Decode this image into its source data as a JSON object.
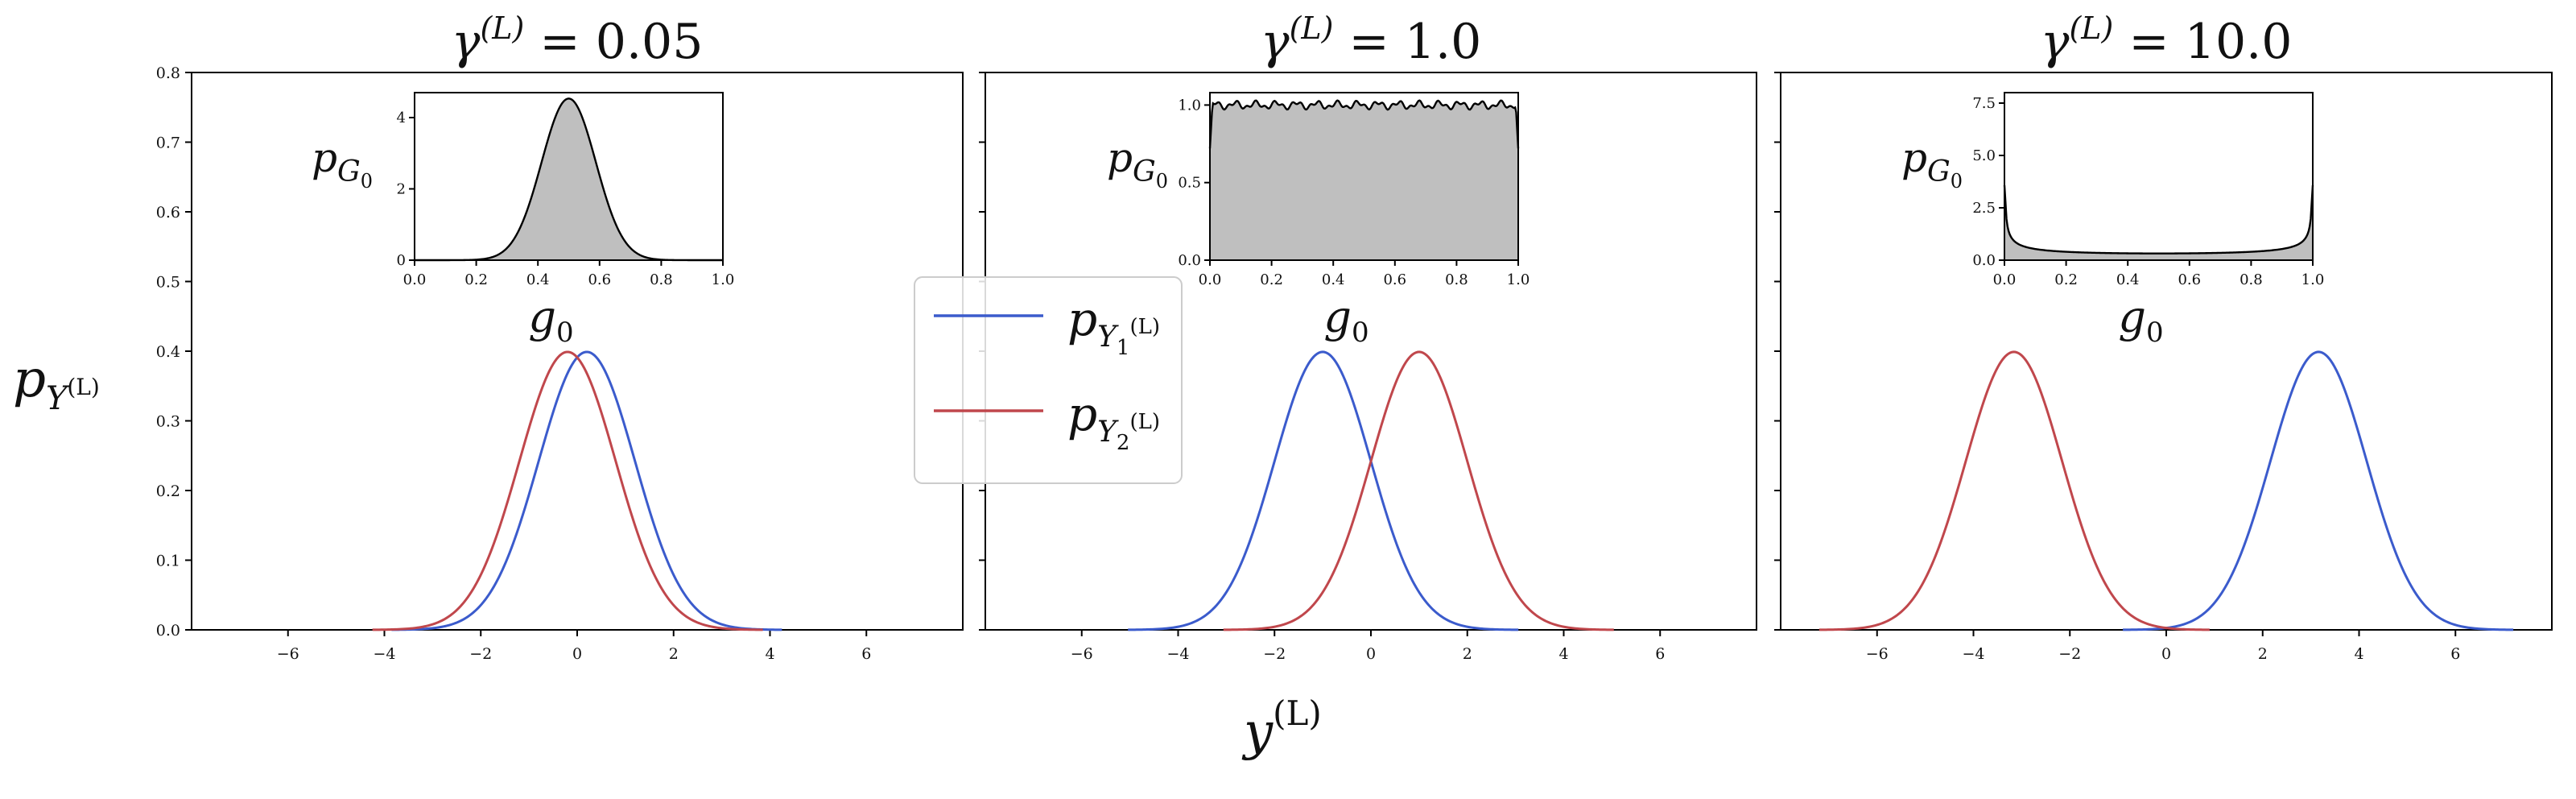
{
  "chart_data": {
    "type": "line",
    "xlabel": "y",
    "xlabel_sup": "(L)",
    "ylabel": "p",
    "ylabel_sub": "Y",
    "ylabel_sub_sup": "(L)",
    "ylim": [
      0,
      0.8
    ],
    "yticks": [
      "0.0",
      "0.1",
      "0.2",
      "0.3",
      "0.4",
      "0.5",
      "0.6",
      "0.7",
      "0.8"
    ],
    "xticks": [
      "−6",
      "−4",
      "−2",
      "0",
      "2",
      "4",
      "6"
    ],
    "xtick_values": [
      -6,
      -4,
      -2,
      0,
      2,
      4,
      6
    ],
    "xlim": [
      -8,
      8
    ],
    "legend": {
      "position": "center",
      "entries": [
        {
          "name": "p",
          "sub": "Y",
          "subsub": "1",
          "subsup": "(L)",
          "color": "#3b5bcc"
        },
        {
          "name": "p",
          "sub": "Y",
          "subsub": "2",
          "subsup": "(L)",
          "color": "#c0474c"
        }
      ]
    },
    "panels": [
      {
        "title_lhs": "γ",
        "title_sup": "(L)",
        "title_rhs": " = 0.05",
        "series": [
          {
            "color": "#3b5bcc",
            "mean": 0.2,
            "std": 1.0
          },
          {
            "color": "#c0474c",
            "mean": -0.2,
            "std": 1.0
          }
        ],
        "inset": {
          "name": "p",
          "name_sub": "G",
          "name_subsub": "0",
          "xname": "g",
          "xname_sub": "0",
          "yticks": [
            "0",
            "2",
            "4"
          ],
          "ytick_values": [
            0,
            2,
            4
          ],
          "ylim": [
            0,
            4.7
          ],
          "xticks": [
            "0.0",
            "0.2",
            "0.4",
            "0.6",
            "0.8",
            "1.0"
          ],
          "density": {
            "kind": "gaussian",
            "mean": 0.5,
            "std": 0.088
          }
        }
      },
      {
        "title_lhs": "γ",
        "title_sup": "(L)",
        "title_rhs": " = 1.0",
        "series": [
          {
            "color": "#3b5bcc",
            "mean": -1.0,
            "std": 1.0
          },
          {
            "color": "#c0474c",
            "mean": 1.0,
            "std": 1.0
          }
        ],
        "inset": {
          "name": "p",
          "name_sub": "G",
          "name_subsub": "0",
          "xname": "g",
          "xname_sub": "0",
          "yticks": [
            "0.0",
            "0.5",
            "1.0"
          ],
          "ytick_values": [
            0,
            0.5,
            1.0
          ],
          "ylim": [
            0,
            1.08
          ],
          "xticks": [
            "0.0",
            "0.2",
            "0.4",
            "0.6",
            "0.8",
            "1.0"
          ],
          "density": {
            "kind": "uniform",
            "level": 1.0
          }
        }
      },
      {
        "title_lhs": "γ",
        "title_sup": "(L)",
        "title_rhs": " = 10.0",
        "series": [
          {
            "color": "#3b5bcc",
            "mean": 3.16,
            "std": 1.0
          },
          {
            "color": "#c0474c",
            "mean": -3.16,
            "std": 1.0
          }
        ],
        "inset": {
          "name": "p",
          "name_sub": "G",
          "name_subsub": "0",
          "xname": "g",
          "xname_sub": "0",
          "yticks": [
            "0.0",
            "2.5",
            "5.0",
            "7.5"
          ],
          "ytick_values": [
            0,
            2.5,
            5.0,
            7.5
          ],
          "ylim": [
            0,
            8.0
          ],
          "xticks": [
            "0.0",
            "0.2",
            "0.4",
            "0.6",
            "0.8",
            "1.0"
          ],
          "density": {
            "kind": "u-shaped",
            "peak": 7.6,
            "floor": 0.32
          }
        }
      }
    ]
  }
}
